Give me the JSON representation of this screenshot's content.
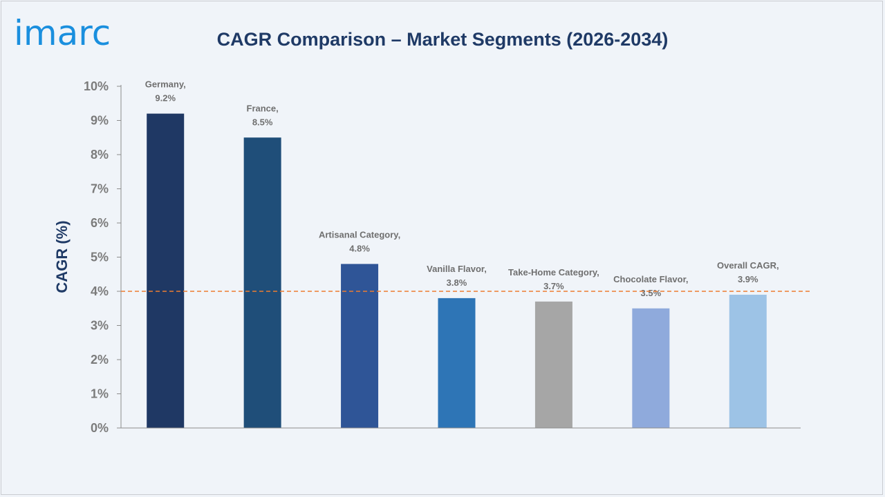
{
  "brand": {
    "logo_text": "imarc"
  },
  "chart_data": {
    "type": "bar",
    "title": "CAGR Comparison – Market Segments (2026-2034)",
    "ylabel": "CAGR (%)",
    "xlabel": "",
    "ylim": [
      0,
      10
    ],
    "yticks": [
      "0%",
      "1%",
      "2%",
      "3%",
      "4%",
      "5%",
      "6%",
      "7%",
      "8%",
      "9%",
      "10%"
    ],
    "categories": [
      "Germany",
      "France",
      "Artisanal Category",
      "Vanilla Flavor",
      "Take-Home Category",
      "Chocolate Flavor",
      "Overall CAGR"
    ],
    "values": [
      9.2,
      8.5,
      4.8,
      3.8,
      3.7,
      3.5,
      3.9
    ],
    "data_labels": [
      [
        "Germany,",
        "9.2%"
      ],
      [
        "France,",
        "8.5%"
      ],
      [
        "Artisanal Category,",
        "4.8%"
      ],
      [
        "Vanilla Flavor,",
        "3.8%"
      ],
      [
        "Take-Home Category,",
        "3.7%"
      ],
      [
        "Chocolate Flavor,",
        "3.5%"
      ],
      [
        "Overall CAGR,",
        "3.9%"
      ]
    ],
    "colors": [
      "#1f3864",
      "#1f4e79",
      "#2f5597",
      "#2e75b6",
      "#a6a6a6",
      "#8faadc",
      "#9dc3e6"
    ],
    "reference_line": {
      "value": 4,
      "color": "#ed7d31",
      "style": "dashed"
    },
    "grid": false,
    "legend": "none"
  }
}
